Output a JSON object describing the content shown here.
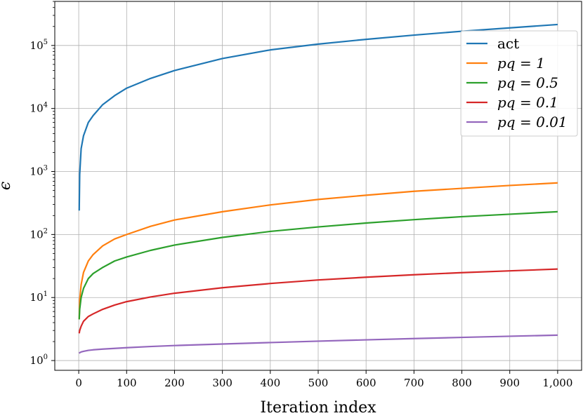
{
  "chart_data": {
    "type": "line",
    "title": "",
    "xlabel": "Iteration index",
    "ylabel": "ϵ",
    "yscale": "log",
    "grid": true,
    "legend_position": "top-right",
    "xlim": [
      -50,
      1050
    ],
    "ylim": [
      0.7,
      500000
    ],
    "x_ticks": [
      0,
      100,
      200,
      300,
      400,
      500,
      600,
      700,
      800,
      900,
      1000
    ],
    "x_tick_labels": [
      "0",
      "100",
      "200",
      "300",
      "400",
      "500",
      "600",
      "700",
      "800",
      "900",
      "1,000"
    ],
    "y_ticks": [
      1,
      10,
      100,
      1000,
      10000,
      100000
    ],
    "y_tick_labels": [
      "10",
      "10",
      "10",
      "10",
      "10",
      "10"
    ],
    "y_tick_exponents": [
      "0",
      "1",
      "2",
      "3",
      "4",
      "5"
    ],
    "series": [
      {
        "name": "act",
        "color": "#1f77b4",
        "x": [
          1,
          2,
          5,
          10,
          20,
          30,
          50,
          75,
          100,
          150,
          200,
          300,
          400,
          500,
          600,
          700,
          800,
          900,
          1000
        ],
        "y": [
          240,
          900,
          2300,
          3700,
          6000,
          7700,
          11500,
          16000,
          21000,
          30000,
          40000,
          62000,
          85000,
          105000,
          125000,
          146000,
          168000,
          190000,
          215000
        ]
      },
      {
        "name": "pq = 1",
        "color": "#ff7f0e",
        "x": [
          1,
          2,
          5,
          10,
          20,
          30,
          50,
          75,
          100,
          150,
          200,
          300,
          400,
          500,
          600,
          700,
          800,
          900,
          1000
        ],
        "y": [
          4.5,
          9,
          16,
          25,
          38,
          48,
          66,
          85,
          100,
          135,
          170,
          230,
          295,
          360,
          420,
          485,
          540,
          600,
          660
        ]
      },
      {
        "name": "pq = 0.5",
        "color": "#2ca02c",
        "x": [
          1,
          2,
          5,
          10,
          20,
          30,
          50,
          75,
          100,
          150,
          200,
          300,
          400,
          500,
          600,
          700,
          800,
          900,
          1000
        ],
        "y": [
          4.5,
          6.5,
          10,
          14,
          20,
          24,
          30,
          38,
          44,
          56,
          68,
          90,
          112,
          132,
          152,
          172,
          192,
          210,
          230
        ]
      },
      {
        "name": "pq = 0.1",
        "color": "#d62728",
        "x": [
          1,
          2,
          5,
          10,
          20,
          30,
          50,
          75,
          100,
          150,
          200,
          300,
          400,
          500,
          600,
          700,
          800,
          900,
          1000
        ],
        "y": [
          2.7,
          3.0,
          3.5,
          4.2,
          5.0,
          5.5,
          6.5,
          7.6,
          8.6,
          10.2,
          11.7,
          14.3,
          16.7,
          19,
          21,
          23,
          24.8,
          26.5,
          28.3
        ]
      },
      {
        "name": "pq = 0.01",
        "color": "#9467bd",
        "x": [
          1,
          2,
          5,
          10,
          20,
          30,
          50,
          75,
          100,
          150,
          200,
          300,
          400,
          500,
          600,
          700,
          800,
          900,
          1000
        ],
        "y": [
          1.3,
          1.33,
          1.37,
          1.4,
          1.45,
          1.48,
          1.52,
          1.56,
          1.6,
          1.67,
          1.73,
          1.83,
          1.93,
          2.03,
          2.13,
          2.23,
          2.33,
          2.43,
          2.53
        ]
      }
    ]
  }
}
